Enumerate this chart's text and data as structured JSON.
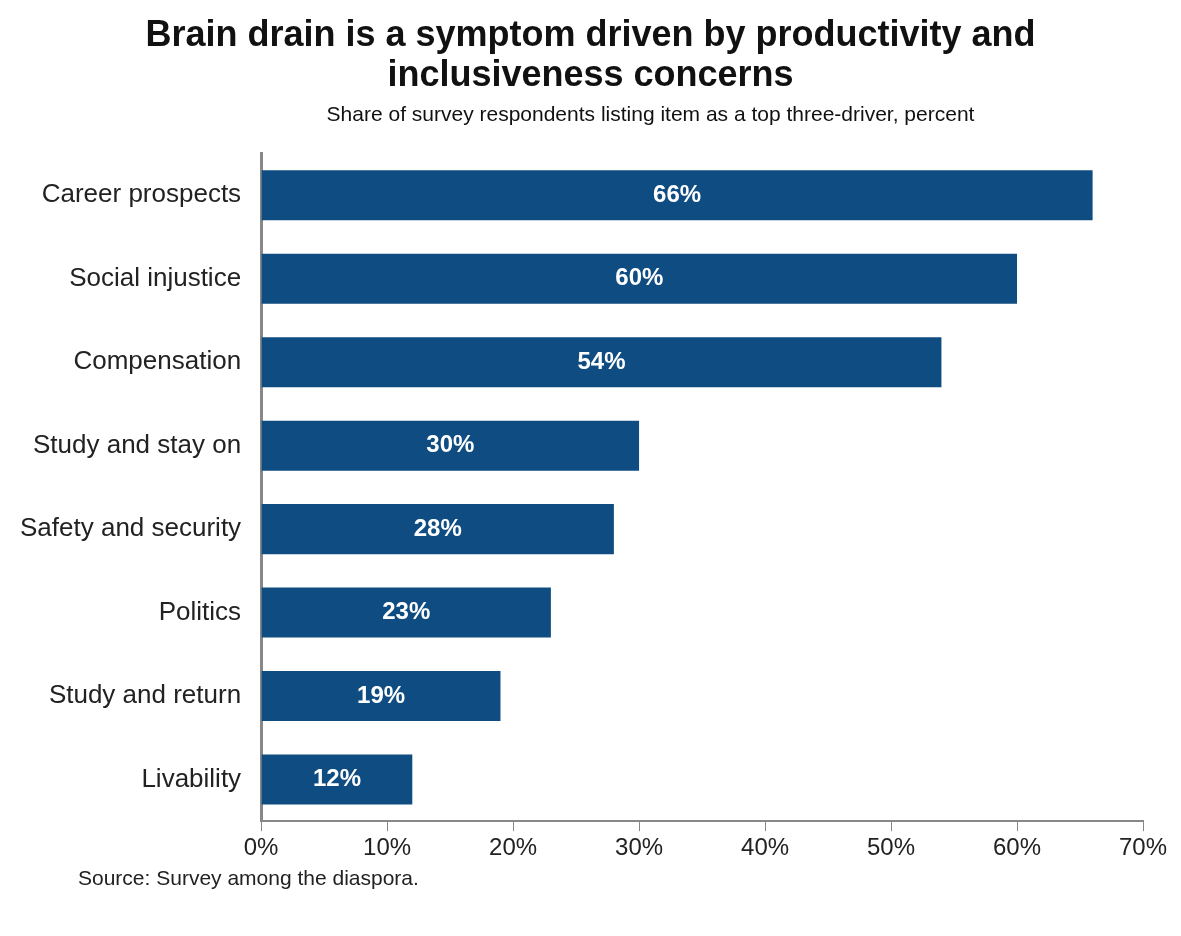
{
  "chart_data": {
    "type": "bar",
    "orientation": "horizontal",
    "title": "Brain drain is a symptom driven by productivity and inclusiveness concerns",
    "subtitle": "Share of survey respondents listing item as a top three-driver, percent",
    "categories": [
      "Career prospects",
      "Social injustice",
      "Compensation",
      "Study and stay on",
      "Safety and security",
      "Politics",
      "Study and return",
      "Livability"
    ],
    "values": [
      66,
      60,
      54,
      30,
      28,
      23,
      19,
      12
    ],
    "value_labels": [
      "66%",
      "60%",
      "54%",
      "30%",
      "28%",
      "23%",
      "19%",
      "12%"
    ],
    "color": "#0f4c81",
    "xlim": [
      0,
      70
    ],
    "xticks": [
      {
        "value": 0,
        "label": "0%"
      },
      {
        "value": 10,
        "label": "10%"
      },
      {
        "value": 20,
        "label": "20%"
      },
      {
        "value": 30,
        "label": "30%"
      },
      {
        "value": 40,
        "label": "40%"
      },
      {
        "value": 50,
        "label": "50%"
      },
      {
        "value": 60,
        "label": "60%"
      },
      {
        "value": 70,
        "label": "70%"
      }
    ],
    "grid": false,
    "legend": false,
    "annotations": [
      "Source: Survey among the diaspora."
    ]
  }
}
